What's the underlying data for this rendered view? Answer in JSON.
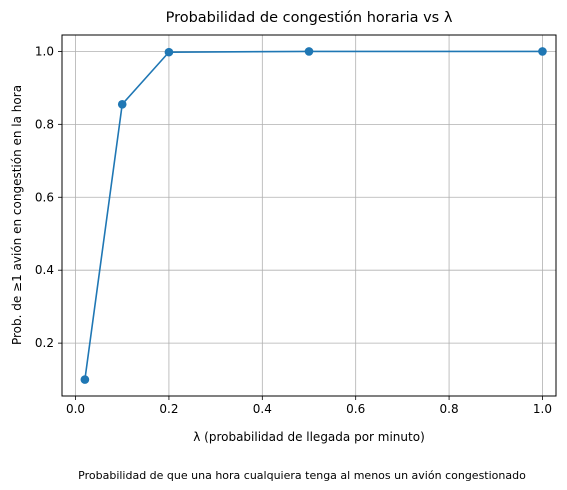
{
  "chart_data": {
    "type": "line",
    "title": "Probabilidad de congestión horaria vs λ",
    "xlabel": "λ (probabilidad de llegada por minuto)",
    "ylabel": "Prob. de ≥1 avión en congestión en la hora",
    "caption": "Probabilidad de que una hora cualquiera tenga al menos un avión congestionado",
    "x": [
      0.02,
      0.1,
      0.2,
      0.5,
      1.0
    ],
    "series": [
      {
        "values": [
          0.1,
          0.855,
          0.998,
          1.0,
          1.0
        ],
        "color": "#1f77b4"
      }
    ],
    "xlim": [
      -0.029,
      1.029
    ],
    "ylim": [
      0.055,
      1.045
    ],
    "xticks": [
      0.0,
      0.2,
      0.4,
      0.6,
      0.8,
      1.0
    ],
    "xtick_labels": [
      "0.0",
      "0.2",
      "0.4",
      "0.6",
      "0.8",
      "1.0"
    ],
    "yticks": [
      0.2,
      0.4,
      0.6,
      0.8,
      1.0
    ],
    "ytick_labels": [
      "0.2",
      "0.4",
      "0.6",
      "0.8",
      "1.0"
    ],
    "grid": true,
    "marker": "circle"
  }
}
